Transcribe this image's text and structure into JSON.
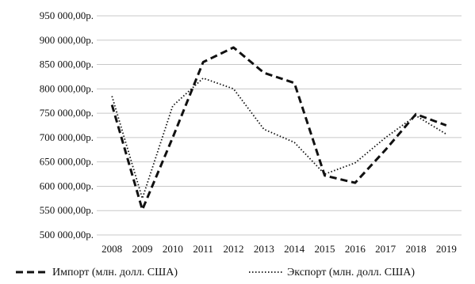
{
  "chart_data": {
    "type": "line",
    "title": "",
    "xlabel": "",
    "ylabel": "",
    "categories": [
      "2008",
      "2009",
      "2010",
      "2011",
      "2012",
      "2013",
      "2014",
      "2015",
      "2016",
      "2017",
      "2018",
      "2019"
    ],
    "y_tick_labels": [
      "500 000,00р.",
      "550 000,00р.",
      "600 000,00р.",
      "650 000,00р.",
      "700 000,00р.",
      "750 000,00р.",
      "800 000,00р.",
      "850 000,00р.",
      "900 000,00р.",
      "950 000,00р."
    ],
    "y_ticks": [
      500000,
      550000,
      600000,
      650000,
      700000,
      750000,
      800000,
      850000,
      900000,
      950000
    ],
    "ylim": [
      500000,
      950000
    ],
    "grid": true,
    "legend_position": "bottom",
    "series": [
      {
        "name": "Импорт (млн. долл. США)",
        "style": "dashed",
        "color": "#111111",
        "values": [
          767000,
          552000,
          700000,
          855000,
          885000,
          833000,
          812000,
          622000,
          607000,
          675000,
          748000,
          725000
        ]
      },
      {
        "name": "Экспорт (млн. долл. США)",
        "style": "dotted",
        "color": "#111111",
        "values": [
          785000,
          575000,
          765000,
          822000,
          800000,
          717000,
          690000,
          625000,
          648000,
          700000,
          745000,
          707000
        ]
      }
    ]
  }
}
